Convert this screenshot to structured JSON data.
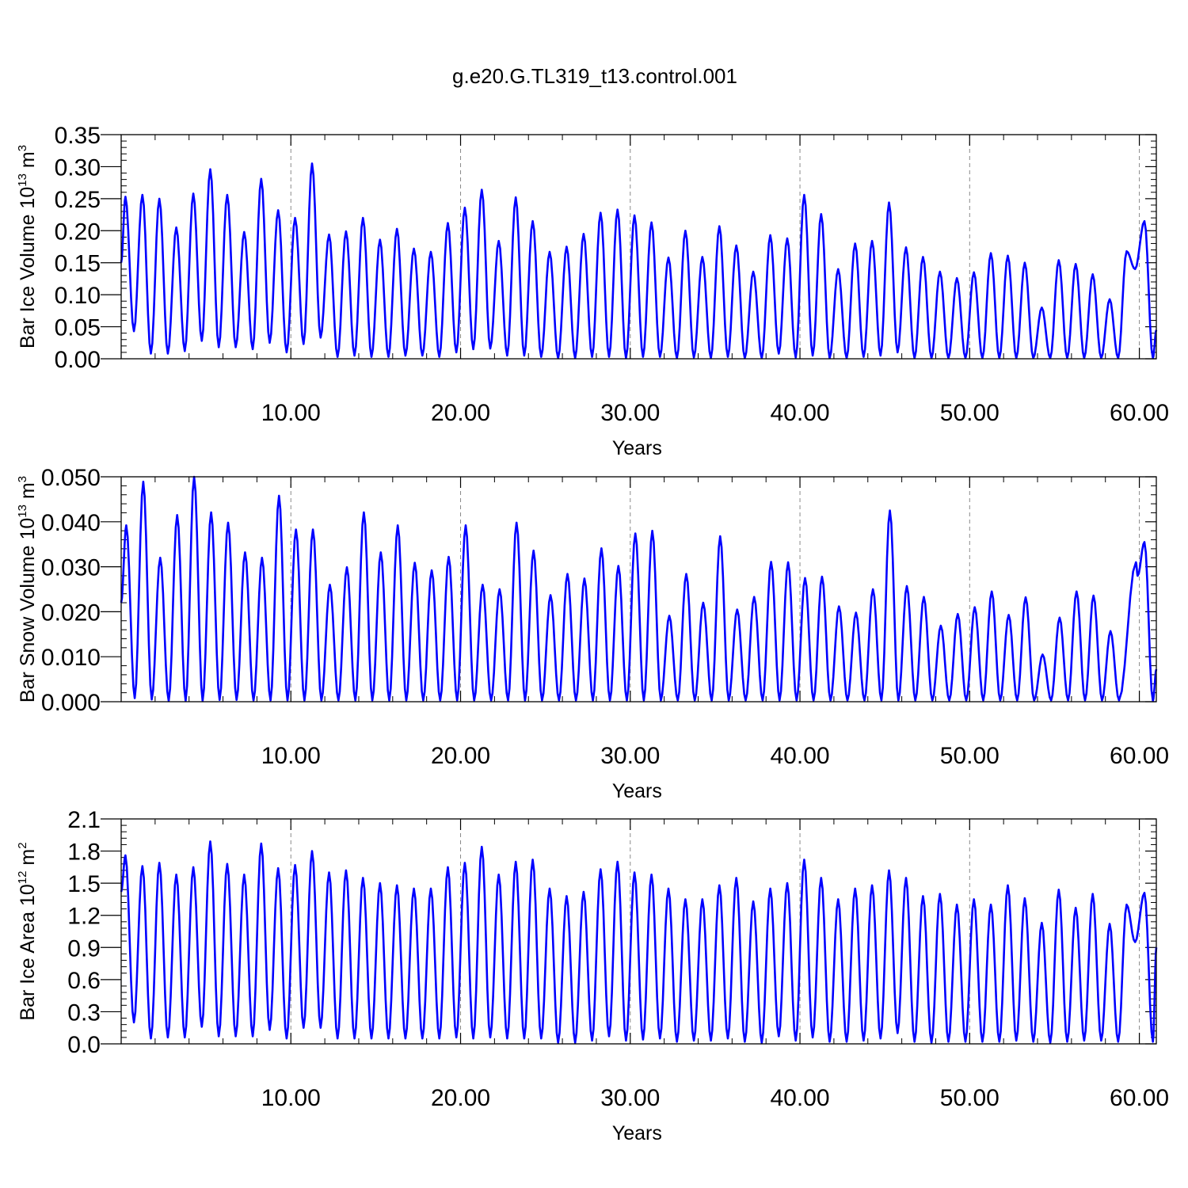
{
  "figure": {
    "title": "g.e20.G.TL319_t13.control.001"
  },
  "chart_data": [
    {
      "type": "line",
      "ylabel_parts": [
        "Bar Ice Volume 10",
        "13",
        " m",
        "3"
      ],
      "xlabel": "Years",
      "xlim": [
        0.0,
        61.0
      ],
      "ylim": [
        0.0,
        0.35
      ],
      "xticks": [
        10,
        20,
        30,
        40,
        50,
        60
      ],
      "xtick_labels": [
        "10.00",
        "20.00",
        "30.00",
        "40.00",
        "50.00",
        "60.00"
      ],
      "yticks": [
        0.0,
        0.05,
        0.1,
        0.15,
        0.2,
        0.25,
        0.3,
        0.35
      ],
      "ytick_labels": [
        "0.00",
        "0.05",
        "0.10",
        "0.15",
        "0.20",
        "0.25",
        "0.30",
        "0.35"
      ],
      "grid": "vertical dashed at major x ticks",
      "series": [
        {
          "color": "#0000ff",
          "peak_x": [
            0.25,
            1.25,
            2.25,
            3.25,
            4.25,
            5.25,
            6.25,
            7.25,
            8.25,
            9.25,
            10.25,
            11.25,
            12.25,
            13.25,
            14.25,
            15.25,
            16.25,
            17.25,
            18.25,
            19.25,
            20.25,
            21.25,
            22.25,
            23.25,
            24.25,
            25.25,
            26.25,
            27.25,
            28.25,
            29.25,
            30.25,
            31.25,
            32.25,
            33.25,
            34.25,
            35.25,
            36.25,
            37.25,
            38.25,
            39.25,
            40.25,
            41.25,
            42.25,
            43.25,
            44.25,
            45.25,
            46.25,
            47.25,
            48.25,
            49.25,
            50.25,
            51.25,
            52.25,
            53.25,
            54.25,
            55.25,
            56.25,
            57.25,
            58.25,
            59.25,
            60.3
          ],
          "peak_y": [
            0.253,
            0.256,
            0.25,
            0.205,
            0.258,
            0.296,
            0.256,
            0.198,
            0.281,
            0.232,
            0.22,
            0.305,
            0.194,
            0.199,
            0.22,
            0.186,
            0.203,
            0.172,
            0.167,
            0.212,
            0.236,
            0.264,
            0.184,
            0.252,
            0.215,
            0.167,
            0.175,
            0.195,
            0.228,
            0.233,
            0.224,
            0.213,
            0.158,
            0.2,
            0.159,
            0.207,
            0.177,
            0.136,
            0.193,
            0.188,
            0.256,
            0.226,
            0.14,
            0.18,
            0.184,
            0.244,
            0.174,
            0.159,
            0.136,
            0.126,
            0.135,
            0.165,
            0.161,
            0.15,
            0.08,
            0.154,
            0.148,
            0.132,
            0.093,
            0.168,
            0.215
          ],
          "trough_x": [
            0.75,
            1.75,
            2.75,
            3.75,
            4.75,
            5.75,
            6.75,
            7.75,
            8.75,
            9.75,
            10.75,
            11.75,
            12.75,
            13.75,
            14.75,
            15.75,
            16.75,
            17.75,
            18.75,
            19.75,
            20.75,
            21.75,
            22.75,
            23.75,
            24.75,
            25.75,
            26.75,
            27.75,
            28.75,
            29.75,
            30.75,
            31.75,
            32.75,
            33.75,
            34.75,
            35.75,
            36.75,
            37.75,
            38.75,
            39.75,
            40.75,
            41.75,
            42.75,
            43.75,
            44.75,
            45.75,
            46.75,
            47.75,
            48.75,
            49.75,
            50.75,
            51.75,
            52.75,
            53.75,
            54.75,
            55.75,
            56.75,
            57.75,
            58.75,
            59.75,
            60.8
          ],
          "trough_y": [
            0.043,
            0.008,
            0.008,
            0.012,
            0.028,
            0.018,
            0.018,
            0.015,
            0.025,
            0.01,
            0.023,
            0.033,
            0.003,
            0.005,
            0.003,
            0.003,
            0.005,
            0.005,
            0.003,
            0.01,
            0.015,
            0.016,
            0.005,
            0.005,
            0.003,
            0.001,
            0.001,
            0.003,
            0.003,
            0.001,
            0.003,
            0.003,
            0.001,
            0.002,
            0.001,
            0.003,
            0.001,
            0.001,
            0.008,
            0.002,
            0.005,
            0.001,
            0.001,
            0.003,
            0.005,
            0.01,
            0.001,
            0.001,
            0.001,
            0.001,
            0.001,
            0.001,
            0.001,
            0.001,
            0.001,
            0.001,
            0.001,
            0.001,
            0.001,
            0.14,
            0.001
          ],
          "start_y": 0.15,
          "end_y": 0.045
        }
      ]
    },
    {
      "type": "line",
      "ylabel_parts": [
        "Bar Snow Volume 10",
        "13",
        " m",
        "3"
      ],
      "xlabel": "Years",
      "xlim": [
        0.0,
        61.0
      ],
      "ylim": [
        0.0,
        0.05
      ],
      "xticks": [
        10,
        20,
        30,
        40,
        50,
        60
      ],
      "xtick_labels": [
        "10.00",
        "20.00",
        "30.00",
        "40.00",
        "50.00",
        "60.00"
      ],
      "yticks": [
        0.0,
        0.01,
        0.02,
        0.03,
        0.04,
        0.05
      ],
      "ytick_labels": [
        "0.000",
        "0.010",
        "0.020",
        "0.030",
        "0.040",
        "0.050"
      ],
      "grid": "vertical dashed at major x ticks",
      "series": [
        {
          "color": "#0000ff",
          "peak_x": [
            0.3,
            1.3,
            2.3,
            3.3,
            4.3,
            5.3,
            6.3,
            7.3,
            8.3,
            9.3,
            10.3,
            11.3,
            12.3,
            13.3,
            14.3,
            15.3,
            16.3,
            17.3,
            18.3,
            19.3,
            20.3,
            21.3,
            22.3,
            23.3,
            24.3,
            25.3,
            26.3,
            27.3,
            28.3,
            29.3,
            30.3,
            31.3,
            32.3,
            33.3,
            34.3,
            35.3,
            36.3,
            37.3,
            38.3,
            39.3,
            40.3,
            41.3,
            42.3,
            43.3,
            44.3,
            45.3,
            46.3,
            47.3,
            48.3,
            49.3,
            50.3,
            51.3,
            52.3,
            53.3,
            54.3,
            55.3,
            56.3,
            57.3,
            58.3,
            59.8,
            60.3
          ],
          "peak_y": [
            0.0392,
            0.0489,
            0.032,
            0.0415,
            0.05,
            0.0421,
            0.0398,
            0.0332,
            0.032,
            0.0458,
            0.0383,
            0.0383,
            0.026,
            0.0299,
            0.0421,
            0.0332,
            0.0392,
            0.0309,
            0.0292,
            0.0322,
            0.0392,
            0.026,
            0.025,
            0.0398,
            0.0336,
            0.0237,
            0.0284,
            0.0274,
            0.0341,
            0.0302,
            0.0374,
            0.038,
            0.0191,
            0.0284,
            0.022,
            0.0368,
            0.0205,
            0.0233,
            0.0311,
            0.031,
            0.0275,
            0.0278,
            0.0212,
            0.0198,
            0.025,
            0.0425,
            0.0257,
            0.0233,
            0.0169,
            0.0195,
            0.021,
            0.0245,
            0.0193,
            0.0232,
            0.0105,
            0.0187,
            0.0245,
            0.0236,
            0.0157,
            0.031,
            0.0355
          ],
          "trough_x": [
            0.8,
            1.8,
            2.8,
            3.8,
            4.8,
            5.8,
            6.8,
            7.8,
            8.8,
            9.8,
            10.8,
            11.8,
            12.8,
            13.8,
            14.8,
            15.8,
            16.8,
            17.8,
            18.8,
            19.8,
            20.8,
            21.8,
            22.8,
            23.8,
            24.8,
            25.8,
            26.8,
            27.8,
            28.8,
            29.8,
            30.8,
            31.8,
            32.8,
            33.8,
            34.8,
            35.8,
            36.8,
            37.8,
            38.8,
            39.8,
            40.8,
            41.8,
            42.8,
            43.8,
            44.8,
            45.8,
            46.8,
            47.8,
            48.8,
            49.8,
            50.8,
            51.8,
            52.8,
            53.8,
            54.8,
            55.8,
            56.8,
            57.8,
            58.8,
            59.9,
            60.8
          ],
          "trough_y": [
            0.0008,
            0.0005,
            0.0002,
            0.0002,
            0.0002,
            0.0004,
            0.0004,
            0.0003,
            0.0003,
            0.0003,
            0.0003,
            0.0003,
            0.0003,
            0.0003,
            0.0003,
            0.0003,
            0.0003,
            0.0003,
            0.0003,
            0.0003,
            0.0003,
            0.0003,
            0.0003,
            0.0003,
            0.0003,
            0.0003,
            0.0003,
            0.0003,
            0.0003,
            0.0003,
            0.0003,
            0.0003,
            0.0003,
            0.0003,
            0.0003,
            0.0003,
            0.0003,
            0.0003,
            0.0003,
            0.0003,
            0.0003,
            0.0003,
            0.0003,
            0.0003,
            0.0003,
            0.0003,
            0.0003,
            0.0003,
            0.0003,
            0.0003,
            0.0003,
            0.0003,
            0.0003,
            0.0003,
            0.0003,
            0.0003,
            0.0003,
            0.0003,
            0.0003,
            0.028,
            0.0002
          ],
          "start_y": 0.022,
          "end_y": 0.0072
        }
      ]
    },
    {
      "type": "line",
      "ylabel_parts": [
        "Bar Ice Area 10",
        "12",
        " m",
        "2"
      ],
      "xlabel": "Years",
      "xlim": [
        0.0,
        61.0
      ],
      "ylim": [
        0.0,
        2.1
      ],
      "xticks": [
        10,
        20,
        30,
        40,
        50,
        60
      ],
      "xtick_labels": [
        "10.00",
        "20.00",
        "30.00",
        "40.00",
        "50.00",
        "60.00"
      ],
      "yticks": [
        0.0,
        0.3,
        0.6,
        0.9,
        1.2,
        1.5,
        1.8,
        2.1
      ],
      "ytick_labels": [
        "0.0",
        "0.3",
        "0.6",
        "0.9",
        "1.2",
        "1.5",
        "1.8",
        "2.1"
      ],
      "grid": "vertical dashed at major x ticks",
      "series": [
        {
          "color": "#0000ff",
          "peak_x": [
            0.25,
            1.25,
            2.25,
            3.25,
            4.25,
            5.25,
            6.25,
            7.25,
            8.25,
            9.25,
            10.25,
            11.25,
            12.25,
            13.25,
            14.25,
            15.25,
            16.25,
            17.25,
            18.25,
            19.25,
            20.25,
            21.25,
            22.25,
            23.25,
            24.25,
            25.25,
            26.25,
            27.25,
            28.25,
            29.25,
            30.25,
            31.25,
            32.25,
            33.25,
            34.25,
            35.25,
            36.25,
            37.25,
            38.25,
            39.25,
            40.25,
            41.25,
            42.25,
            43.25,
            44.25,
            45.25,
            46.25,
            47.25,
            48.25,
            49.25,
            50.25,
            51.25,
            52.25,
            53.25,
            54.25,
            55.25,
            56.25,
            57.25,
            58.25,
            59.25,
            60.3
          ],
          "peak_y": [
            1.76,
            1.66,
            1.69,
            1.58,
            1.65,
            1.89,
            1.68,
            1.58,
            1.87,
            1.64,
            1.67,
            1.8,
            1.6,
            1.62,
            1.55,
            1.5,
            1.48,
            1.45,
            1.45,
            1.65,
            1.69,
            1.84,
            1.58,
            1.7,
            1.72,
            1.45,
            1.38,
            1.42,
            1.63,
            1.7,
            1.6,
            1.58,
            1.45,
            1.35,
            1.35,
            1.48,
            1.55,
            1.33,
            1.45,
            1.5,
            1.72,
            1.55,
            1.35,
            1.45,
            1.48,
            1.62,
            1.55,
            1.38,
            1.4,
            1.3,
            1.35,
            1.3,
            1.48,
            1.36,
            1.13,
            1.44,
            1.27,
            1.4,
            1.12,
            1.3,
            1.41
          ],
          "trough_x": [
            0.75,
            1.75,
            2.75,
            3.75,
            4.75,
            5.75,
            6.75,
            7.75,
            8.75,
            9.75,
            10.75,
            11.75,
            12.75,
            13.75,
            14.75,
            15.75,
            16.75,
            17.75,
            18.75,
            19.75,
            20.75,
            21.75,
            22.75,
            23.75,
            24.75,
            25.75,
            26.75,
            27.75,
            28.75,
            29.75,
            30.75,
            31.75,
            32.75,
            33.75,
            34.75,
            35.75,
            36.75,
            37.75,
            38.75,
            39.75,
            40.75,
            41.75,
            42.75,
            43.75,
            44.75,
            45.75,
            46.75,
            47.75,
            48.75,
            49.75,
            50.75,
            51.75,
            52.75,
            53.75,
            54.75,
            55.75,
            56.75,
            57.75,
            58.75,
            59.75,
            60.8
          ],
          "trough_y": [
            0.2,
            0.05,
            0.06,
            0.06,
            0.16,
            0.07,
            0.07,
            0.07,
            0.13,
            0.05,
            0.15,
            0.15,
            0.05,
            0.05,
            0.05,
            0.05,
            0.05,
            0.05,
            0.05,
            0.06,
            0.05,
            0.06,
            0.05,
            0.05,
            0.05,
            0.01,
            0.01,
            0.03,
            0.07,
            0.03,
            0.04,
            0.05,
            0.02,
            0.03,
            0.03,
            0.05,
            0.02,
            0.01,
            0.07,
            0.03,
            0.06,
            0.02,
            0.02,
            0.03,
            0.05,
            0.1,
            0.02,
            0.01,
            0.02,
            0.02,
            0.02,
            0.02,
            0.03,
            0.02,
            0.01,
            0.02,
            0.03,
            0.03,
            0.02,
            0.95,
            0.02
          ],
          "start_y": 1.42,
          "end_y": 0.9
        }
      ]
    }
  ]
}
